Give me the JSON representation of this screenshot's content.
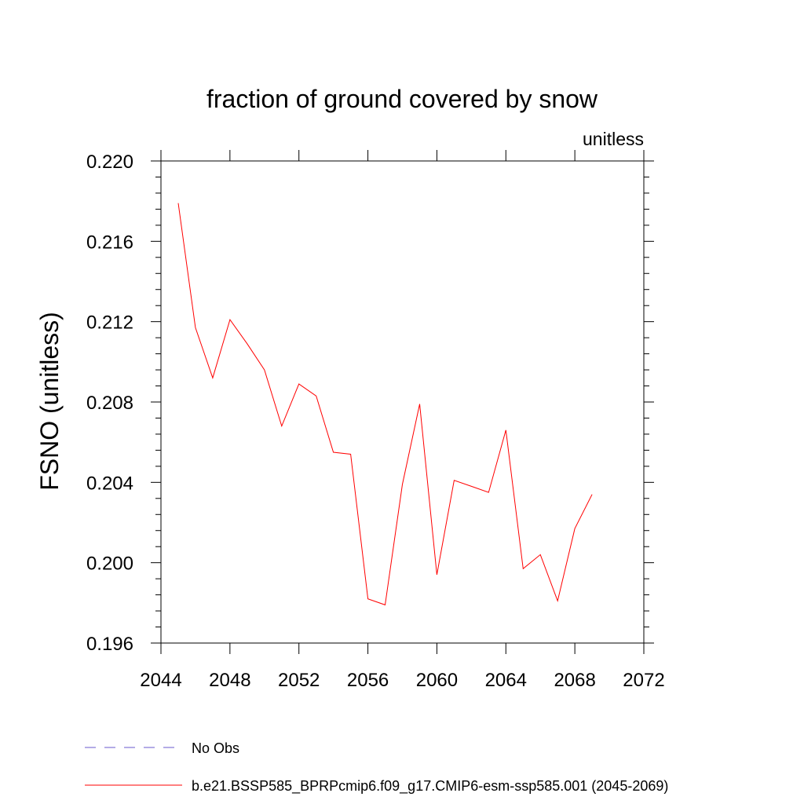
{
  "chart_data": {
    "type": "line",
    "title": "fraction of ground covered by snow",
    "units_label": "unitless",
    "ylabel": "FSNO  (unitless)",
    "xlabel": "",
    "xlim": [
      2044,
      2072
    ],
    "ylim": [
      0.196,
      0.22
    ],
    "x_ticks": [
      2044,
      2048,
      2052,
      2056,
      2060,
      2064,
      2068,
      2072
    ],
    "x_tick_labels": [
      "2044",
      "2048",
      "2052",
      "2056",
      "2060",
      "2064",
      "2068",
      "2072"
    ],
    "y_ticks": [
      0.196,
      0.2,
      0.204,
      0.208,
      0.212,
      0.216,
      0.22
    ],
    "y_tick_labels": [
      "0.196",
      "0.200",
      "0.204",
      "0.208",
      "0.212",
      "0.216",
      "0.220"
    ],
    "grid": false,
    "legend_position": "bottom",
    "series": [
      {
        "name": "b.e21.BSSP585_BPRPcmip6.f09_g17.CMIP6-esm-ssp585.001 (2045-2069)",
        "color": "#ff0000",
        "style": "solid",
        "x": [
          2045,
          2046,
          2047,
          2048,
          2049,
          2050,
          2051,
          2052,
          2053,
          2054,
          2055,
          2056,
          2057,
          2058,
          2059,
          2060,
          2061,
          2062,
          2063,
          2064,
          2065,
          2066,
          2067,
          2068,
          2069
        ],
        "y": [
          0.2179,
          0.2117,
          0.2092,
          0.2121,
          0.2109,
          0.2096,
          0.2068,
          0.2089,
          0.2083,
          0.2055,
          0.2054,
          0.1982,
          0.1979,
          0.2039,
          0.2079,
          0.1994,
          0.2041,
          0.2038,
          0.2035,
          0.2066,
          0.1997,
          0.2004,
          0.1981,
          0.2017,
          0.2034
        ]
      }
    ],
    "legend": [
      {
        "label": "No Obs",
        "color": "#6a5acd",
        "style": "dashed"
      },
      {
        "label": "b.e21.BSSP585_BPRPcmip6.f09_g17.CMIP6-esm-ssp585.001 (2045-2069)",
        "color": "#ff0000",
        "style": "solid"
      }
    ]
  }
}
